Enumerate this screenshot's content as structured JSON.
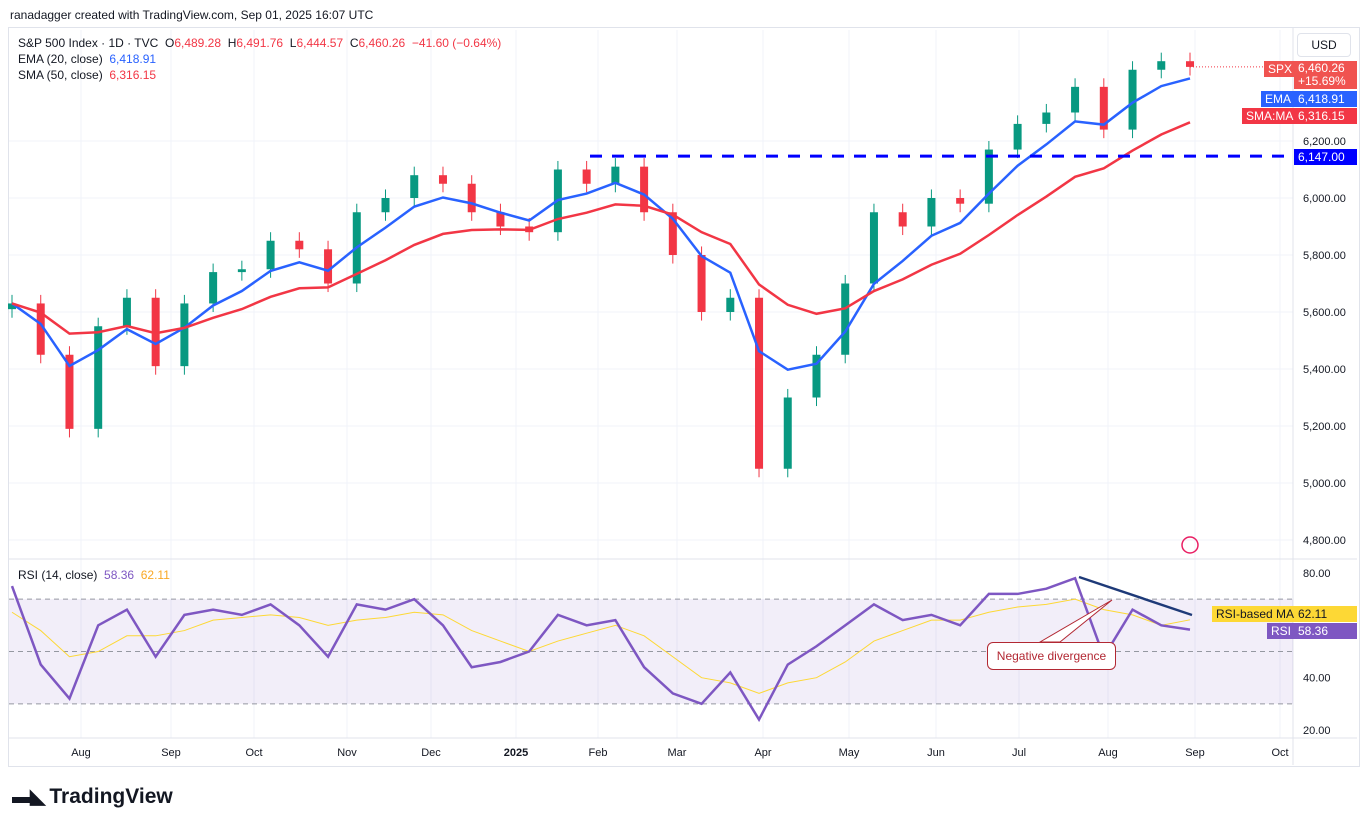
{
  "credit": "ranadagger created with TradingView.com, Sep 01, 2025 16:07 UTC",
  "legend": {
    "symbol": "S&P 500 Index · 1D · TVC",
    "o": "6,489.28",
    "h": "6,491.76",
    "l": "6,444.57",
    "c": "6,460.26",
    "chg": "−41.60 (−0.64%)",
    "ema": "EMA (20, close)",
    "ema_val": "6,418.91",
    "sma": "SMA (50, close)",
    "sma_val": "6,316.15",
    "rsi": "RSI (14, close)",
    "rsi_val": "58.36",
    "rsi_ma_val": "62.11"
  },
  "currency": "USD",
  "tags": {
    "spx": "SPX",
    "spx_price": "6,460.26",
    "spx_pct": "+15.69%",
    "ema": "EMA",
    "ema_price": "6,418.91",
    "sma": "SMA:MA",
    "sma_price": "6,316.15",
    "level": "6,147.00",
    "rsi_ma": "RSI-based MA",
    "rsi_ma_price": "62.11",
    "rsi": "RSI",
    "rsi_price": "58.36"
  },
  "annotation": "Negative divergence",
  "brand": "TradingView",
  "colors": {
    "up": "#089981",
    "down": "#f23645",
    "ema": "#2962ff",
    "sma": "#f23645",
    "rsi": "#7e57c2",
    "rsi_ma": "#fdd835",
    "level": "#0000ff"
  },
  "chart_data": {
    "type": "candlestick",
    "price_axis": {
      "ticks": [
        "6,200.00",
        "6,000.00",
        "5,800.00",
        "5,600.00",
        "5,400.00",
        "5,200.00",
        "5,000.00",
        "4,800.00"
      ],
      "values": [
        6200,
        6000,
        5800,
        5600,
        5400,
        5200,
        5000,
        4800
      ]
    },
    "rsi_axis": {
      "ticks": [
        "80.00",
        "40.00",
        "20.00"
      ],
      "values": [
        80,
        40,
        20
      ],
      "bands": [
        70,
        50,
        30
      ]
    },
    "time_axis": [
      "Aug",
      "Sep",
      "Oct",
      "Nov",
      "Dec",
      "2025",
      "Feb",
      "Mar",
      "Apr",
      "May",
      "Jun",
      "Jul",
      "Aug",
      "Sep",
      "Oct"
    ],
    "horizontal_level": 6147,
    "weekly_closes": [
      5630,
      5450,
      5190,
      5550,
      5650,
      5410,
      5630,
      5740,
      5750,
      5850,
      5820,
      5700,
      5950,
      6000,
      6080,
      6050,
      5950,
      5900,
      5880,
      6100,
      6050,
      6110,
      5950,
      5800,
      5600,
      5650,
      5050,
      5300,
      5450,
      5700,
      5950,
      5900,
      6000,
      5980,
      6170,
      6260,
      6300,
      6390,
      6240,
      6450,
      6480,
      6460
    ],
    "rsi_values": [
      75,
      45,
      32,
      60,
      66,
      48,
      64,
      66,
      64,
      68,
      60,
      48,
      68,
      66,
      70,
      60,
      44,
      46,
      50,
      64,
      60,
      62,
      44,
      34,
      30,
      42,
      24,
      45,
      52,
      60,
      68,
      62,
      64,
      60,
      72,
      72,
      74,
      78,
      48,
      66,
      60,
      58.36
    ],
    "rsi_ma_values": [
      65,
      58,
      48,
      50,
      56,
      56,
      58,
      62,
      63,
      64,
      63,
      60,
      62,
      63,
      65,
      64,
      58,
      54,
      50,
      54,
      57,
      60,
      56,
      48,
      40,
      38,
      34,
      38,
      40,
      46,
      54,
      58,
      62,
      62,
      65,
      67,
      68,
      70,
      66,
      64,
      60,
      62.11
    ]
  }
}
